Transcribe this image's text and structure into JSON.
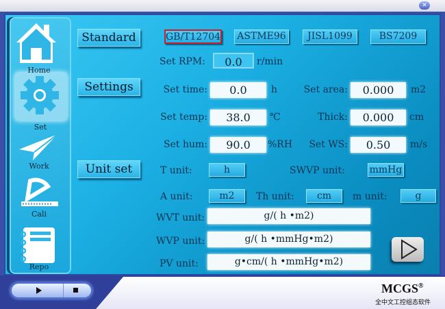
{
  "window": {
    "close_icon": "close-icon"
  },
  "nav": [
    {
      "label": "Home",
      "icon": "home-icon"
    },
    {
      "label": "Set",
      "icon": "gear-icon"
    },
    {
      "label": "Work",
      "icon": "paper-plane-icon"
    },
    {
      "label": "Cali",
      "icon": "protractor-icon"
    },
    {
      "label": "Repo",
      "icon": "notebook-icon"
    }
  ],
  "sections": {
    "standard": "Standard",
    "settings": "Settings",
    "unit_set": "Unit set"
  },
  "standards": {
    "options": [
      "GB/T12704",
      "ASTME96",
      "JISL1099",
      "BS7209"
    ],
    "selected": "GB/T12704"
  },
  "rpm": {
    "label": "Set RPM:",
    "value": "0.0",
    "unit": "r/min"
  },
  "settings": {
    "time": {
      "label": "Set time:",
      "value": "0.0",
      "unit": "h"
    },
    "temp": {
      "label": "Set temp:",
      "value": "38.0",
      "unit": "℃"
    },
    "hum": {
      "label": "Set hum:",
      "value": "90.0",
      "unit": "%RH"
    },
    "area": {
      "label": "Set area:",
      "value": "0.000",
      "unit": "m2"
    },
    "thick": {
      "label": "Thick:",
      "value": "0.000",
      "unit": "cm"
    },
    "ws": {
      "label": "Set WS:",
      "value": "0.50",
      "unit": "m/s"
    }
  },
  "units": {
    "t": {
      "label": "T unit:",
      "value": "h"
    },
    "swvp": {
      "label": "SWVP unit:",
      "value": "mmHg"
    },
    "a": {
      "label": "A unit:",
      "value": "m2"
    },
    "th": {
      "label": "Th unit:",
      "value": "cm"
    },
    "m": {
      "label": "m unit:",
      "value": "g"
    },
    "wvt": {
      "label": "WVT unit:",
      "value": "g/( h •m2)"
    },
    "wvp": {
      "label": "WVP unit:",
      "value": "g/( h •mmHg•m2)"
    },
    "pv": {
      "label": "PV unit:",
      "value": "g•cm/( h •mmHg•m2)"
    }
  },
  "next_button": "play-icon",
  "footer": {
    "brand": "MCGS",
    "registered": "®",
    "subtitle": "全中文工控组态软件"
  },
  "colors": {
    "selected_border": "#c8202a",
    "background": "#1cb0e4"
  }
}
